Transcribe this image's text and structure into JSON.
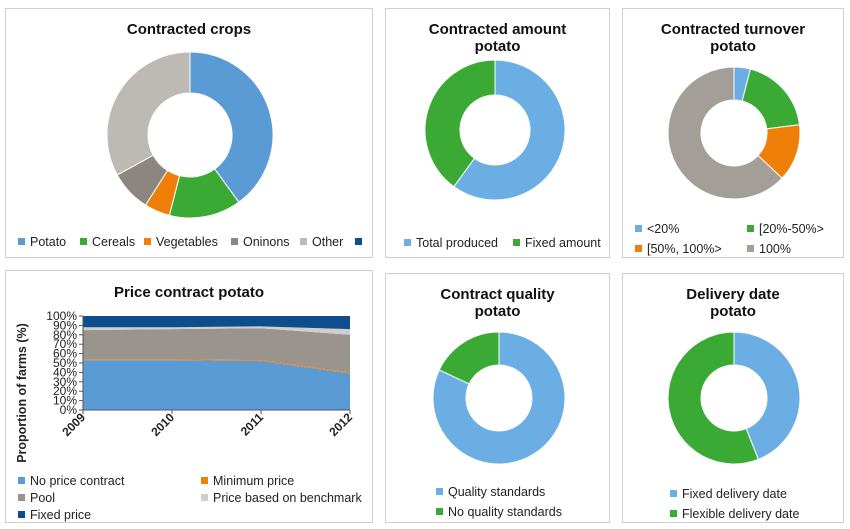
{
  "colors": {
    "blue": "#5b9bd5",
    "light_blue": "#6aaee3",
    "green": "#3aaa35",
    "orange": "#f07f09",
    "gray": "#9a948e",
    "light_gray": "#bdbab6",
    "dark_blue": "#0f4e8c",
    "taupe": "#a49e98"
  },
  "chart_data": [
    {
      "type": "pie",
      "donut": true,
      "title": "Contracted crops",
      "slices": [
        {
          "label": "Potato",
          "value": 40,
          "color": "#5b9bd5"
        },
        {
          "label": "Cereals",
          "value": 14,
          "color": "#3aaa35"
        },
        {
          "label": "Vegetables",
          "value": 5,
          "color": "#f07f09"
        },
        {
          "label": "Oninons",
          "value": 8,
          "color": "#8c8680"
        },
        {
          "label": "Other",
          "value": 33,
          "color": "#bdbab6"
        },
        {
          "label": "",
          "value": 0,
          "color": "#0f4e8c"
        }
      ]
    },
    {
      "type": "pie",
      "donut": true,
      "title_lines": [
        "Contracted amount",
        "potato"
      ],
      "slices": [
        {
          "label": "Total produced",
          "value": 60,
          "color": "#6aaee3"
        },
        {
          "label": "Fixed amount",
          "value": 40,
          "color": "#3aaa35"
        }
      ]
    },
    {
      "type": "pie",
      "donut": true,
      "title_lines": [
        "Contracted turnover",
        "potato"
      ],
      "slices": [
        {
          "label": "<20%",
          "value": 4,
          "color": "#6aaee3"
        },
        {
          "label": "[20%-50%>",
          "value": 19,
          "color": "#3aaa35"
        },
        {
          "label": "[50%, 100%>",
          "value": 14,
          "color": "#f07f09"
        },
        {
          "label": "100%",
          "value": 63,
          "color": "#a49e98"
        }
      ]
    },
    {
      "type": "area",
      "stacked": true,
      "title": "Price contract potato",
      "ylabel": "Proportion of farms (%)",
      "x": [
        "2009",
        "2010",
        "2011",
        "2012"
      ],
      "ylim": [
        0,
        100
      ],
      "yticks": [
        "0%",
        "10%",
        "20%",
        "30%",
        "40%",
        "50%",
        "60%",
        "70%",
        "80%",
        "90%",
        "100%"
      ],
      "grid": false,
      "series": [
        {
          "name": "No price contract",
          "values": [
            53,
            53,
            52,
            39
          ],
          "color": "#5b9bd5"
        },
        {
          "name": "Minimum price",
          "values": [
            1,
            1,
            1,
            1
          ],
          "color": "#f07f09"
        },
        {
          "name": "Pool",
          "values": [
            31,
            32,
            34,
            40
          ],
          "color": "#9a948e"
        },
        {
          "name": "Price based on benchmark",
          "values": [
            3,
            2,
            2,
            6
          ],
          "color": "#d0cdca"
        },
        {
          "name": "Fixed price",
          "values": [
            12,
            12,
            11,
            14
          ],
          "color": "#0f4e8c"
        }
      ]
    },
    {
      "type": "pie",
      "donut": true,
      "title_lines": [
        "Contract quality",
        "potato"
      ],
      "slices": [
        {
          "label": "Quality standards",
          "value": 82,
          "color": "#6aaee3"
        },
        {
          "label": "No quality standards",
          "value": 18,
          "color": "#3aaa35"
        }
      ]
    },
    {
      "type": "pie",
      "donut": true,
      "title_lines": [
        "Delivery date",
        "potato"
      ],
      "slices": [
        {
          "label": "Fixed delivery date",
          "value": 44,
          "color": "#6aaee3"
        },
        {
          "label": "Flexible delivery date",
          "value": 56,
          "color": "#3aaa35"
        }
      ]
    }
  ]
}
